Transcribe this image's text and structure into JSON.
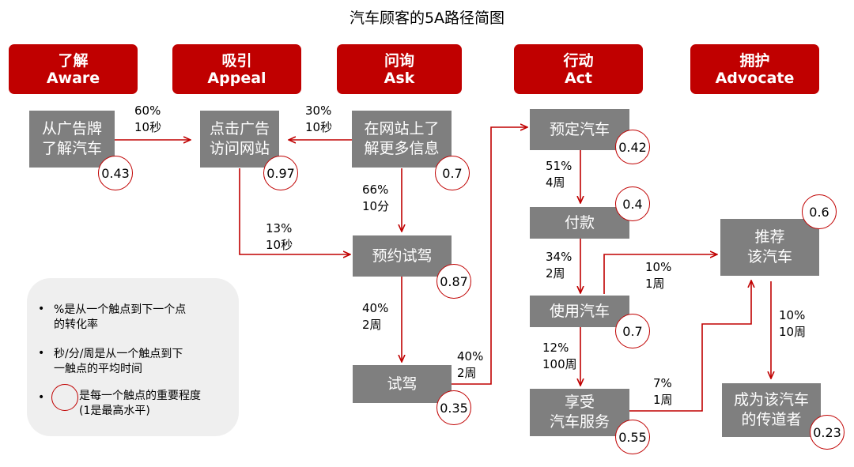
{
  "title": "汽车顾客的5A路径简图",
  "colors": {
    "stage_red": "#C00000",
    "node_gray": "#7F7F7F",
    "arrow_red": "#C00000",
    "legend_bg": "#EFEFEF"
  },
  "stages": [
    {
      "cn": "了解",
      "en": "Aware"
    },
    {
      "cn": "吸引",
      "en": "Appeal"
    },
    {
      "cn": "问询",
      "en": "Ask"
    },
    {
      "cn": "行动",
      "en": "Act"
    },
    {
      "cn": "拥护",
      "en": "Advocate"
    }
  ],
  "nodes": [
    {
      "text": "从广告牌\n了解汽车",
      "score": "0.43"
    },
    {
      "text": "点击广告\n访问网站",
      "score": "0.97"
    },
    {
      "text": "在网站上了\n解更多信息",
      "score": "0.7"
    },
    {
      "text": "预约试驾",
      "score": "0.87"
    },
    {
      "text": "试驾",
      "score": "0.35"
    },
    {
      "text": "预定汽车",
      "score": "0.42"
    },
    {
      "text": "付款",
      "score": "0.4"
    },
    {
      "text": "使用汽车",
      "score": "0.7"
    },
    {
      "text": "享受\n汽车服务",
      "score": "0.55"
    },
    {
      "text": "推荐\n该汽车",
      "score": "0.6"
    },
    {
      "text": "成为该汽车\n的传道者",
      "score": "0.23"
    }
  ],
  "edges": [
    {
      "from": "从广告牌了解汽车",
      "to": "点击广告访问网站",
      "rate": "60%",
      "time": "10秒"
    },
    {
      "from": "在网站上了解更多信息",
      "to": "点击广告访问网站",
      "rate": "30%",
      "time": "10秒"
    },
    {
      "from": "在网站上了解更多信息",
      "to": "预约试驾",
      "rate": "66%",
      "time": "10分"
    },
    {
      "from": "点击广告访问网站",
      "to": "预约试驾",
      "rate": "13%",
      "time": "10秒"
    },
    {
      "from": "预约试驾",
      "to": "试驾",
      "rate": "40%",
      "time": "2周"
    },
    {
      "from": "试驾",
      "to": "预定汽车",
      "rate": "40%",
      "time": "2周"
    },
    {
      "from": "预定汽车",
      "to": "付款",
      "rate": "51%",
      "time": "4周"
    },
    {
      "from": "付款",
      "to": "使用汽车",
      "rate": "34%",
      "time": "2周"
    },
    {
      "from": "使用汽车",
      "to": "推荐该汽车",
      "rate": "10%",
      "time": "1周"
    },
    {
      "from": "使用汽车",
      "to": "享受汽车服务",
      "rate": "12%",
      "time": "100周"
    },
    {
      "from": "享受汽车服务",
      "to": "推荐该汽车",
      "rate": "7%",
      "time": "1周"
    },
    {
      "from": "推荐该汽车",
      "to": "成为该汽车的传道者",
      "rate": "10%",
      "time": "10周"
    }
  ],
  "legend": {
    "bullet": "•",
    "item1": "%是从一个触点到下一个点\n的转化率",
    "item2": "秒/分/周是从一个触点到下\n一触点的平均时间",
    "item3": "是每一个触点的重要程度\n(1是最高水平)"
  }
}
